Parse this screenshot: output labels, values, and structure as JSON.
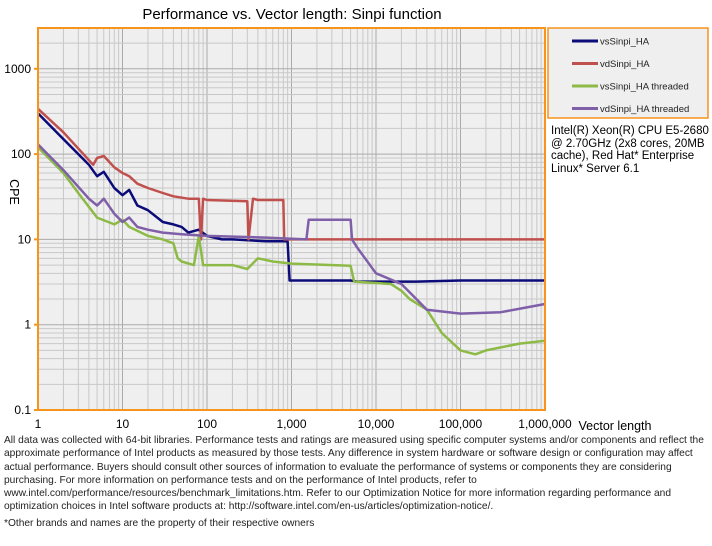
{
  "chart_data": {
    "type": "line",
    "title": "Performance vs. Vector length: Sinpi function",
    "xlabel": "Vector length",
    "ylabel": "CPE",
    "xscale": "log",
    "yscale": "log",
    "xlim": [
      1,
      1000000
    ],
    "ylim": [
      0.1,
      3000
    ],
    "grid": true,
    "legend_placement": "right",
    "x_tick_labels": [
      "1",
      "10",
      "100",
      "1,000",
      "10,000",
      "100,000",
      "1,000,000"
    ],
    "y_tick_labels": [
      "0.1",
      "1",
      "10",
      "100",
      "1000"
    ],
    "colors": {
      "frame": "#f7941d",
      "plot_bg": "#efefef",
      "grid": "#c8c8c8"
    },
    "series": [
      {
        "name": "vsSinpi_HA",
        "color": "#0b0b7a",
        "points": [
          [
            1,
            300
          ],
          [
            2,
            150
          ],
          [
            4,
            75
          ],
          [
            5,
            55
          ],
          [
            6,
            62
          ],
          [
            8,
            40
          ],
          [
            10,
            33
          ],
          [
            12,
            38
          ],
          [
            15,
            25
          ],
          [
            20,
            22
          ],
          [
            30,
            16
          ],
          [
            40,
            15
          ],
          [
            50,
            14
          ],
          [
            60,
            12
          ],
          [
            80,
            13
          ],
          [
            100,
            11
          ],
          [
            150,
            10
          ],
          [
            200,
            10
          ],
          [
            500,
            9.5
          ],
          [
            900,
            9.5
          ],
          [
            950,
            3.3
          ],
          [
            5000,
            3.3
          ],
          [
            6000,
            3.2
          ],
          [
            30000,
            3.2
          ],
          [
            100000,
            3.3
          ],
          [
            1000000,
            3.3
          ]
        ]
      },
      {
        "name": "vdSinpi_HA",
        "color": "#c0504d",
        "points": [
          [
            1,
            340
          ],
          [
            2,
            180
          ],
          [
            4,
            85
          ],
          [
            4.5,
            75
          ],
          [
            5,
            90
          ],
          [
            6,
            95
          ],
          [
            8,
            70
          ],
          [
            10,
            60
          ],
          [
            12,
            55
          ],
          [
            15,
            45
          ],
          [
            20,
            40
          ],
          [
            30,
            35
          ],
          [
            40,
            32
          ],
          [
            60,
            30
          ],
          [
            80,
            30
          ],
          [
            85,
            10
          ],
          [
            90,
            30
          ],
          [
            100,
            29
          ],
          [
            300,
            28
          ],
          [
            310,
            10
          ],
          [
            350,
            30
          ],
          [
            400,
            29
          ],
          [
            800,
            29
          ],
          [
            820,
            10
          ],
          [
            1000000,
            10
          ]
        ]
      },
      {
        "name": "vsSinpi_HA threaded",
        "color": "#8dba47",
        "points": [
          [
            1,
            120
          ],
          [
            2,
            60
          ],
          [
            3,
            35
          ],
          [
            5,
            18
          ],
          [
            8,
            15
          ],
          [
            10,
            17
          ],
          [
            12,
            14
          ],
          [
            20,
            11
          ],
          [
            30,
            10
          ],
          [
            40,
            9
          ],
          [
            45,
            6
          ],
          [
            50,
            5.5
          ],
          [
            70,
            5
          ],
          [
            80,
            11
          ],
          [
            90,
            5
          ],
          [
            200,
            5
          ],
          [
            300,
            4.5
          ],
          [
            400,
            6
          ],
          [
            600,
            5.5
          ],
          [
            1000,
            5.2
          ],
          [
            5000,
            4.9
          ],
          [
            5500,
            3.2
          ],
          [
            15000,
            3
          ],
          [
            20000,
            2.5
          ],
          [
            25000,
            2
          ],
          [
            40000,
            1.5
          ],
          [
            60000,
            0.8
          ],
          [
            100000,
            0.5
          ],
          [
            150000,
            0.45
          ],
          [
            200000,
            0.5
          ],
          [
            500000,
            0.6
          ],
          [
            1000000,
            0.65
          ]
        ]
      },
      {
        "name": "vdSinpi_HA threaded",
        "color": "#7f5fa8",
        "points": [
          [
            1,
            130
          ],
          [
            2,
            65
          ],
          [
            4,
            30
          ],
          [
            5,
            25
          ],
          [
            6,
            30
          ],
          [
            8,
            20
          ],
          [
            10,
            16
          ],
          [
            12,
            18
          ],
          [
            15,
            14
          ],
          [
            20,
            13
          ],
          [
            30,
            12
          ],
          [
            50,
            11.5
          ],
          [
            100,
            11
          ],
          [
            500,
            10.5
          ],
          [
            1500,
            10
          ],
          [
            1600,
            17
          ],
          [
            5000,
            17
          ],
          [
            5200,
            10
          ],
          [
            6000,
            8
          ],
          [
            10000,
            4
          ],
          [
            20000,
            3
          ],
          [
            30000,
            2
          ],
          [
            40000,
            1.5
          ],
          [
            100000,
            1.35
          ],
          [
            300000,
            1.4
          ],
          [
            1000000,
            1.75
          ]
        ]
      }
    ]
  },
  "cpu_info": "Intel(R) Xeon(R) CPU E5-2680 @ 2.70GHz (2x8 cores, 20MB cache), Red Hat* Enterprise Linux* Server 6.1",
  "disclaimer": "All data was collected with 64-bit libraries. Performance tests and ratings are measured using specific computer systems and/or components and reflect the approximate performance of Intel products as measured by those tests. Any difference in system hardware or software design or configuration may affect actual performance. Buyers should consult other sources of information to evaluate the performance of systems or components they are considering purchasing. For more information on performance tests and on the performance of Intel products, refer to www.intel.com/performance/resources/benchmark_limitations.htm. Refer to our Optimization Notice for more information regarding performance and optimization choices in Intel software products at: http://software.intel.com/en-us/articles/optimization-notice/.",
  "footnote": "*Other brands and names are the property of their respective owners"
}
